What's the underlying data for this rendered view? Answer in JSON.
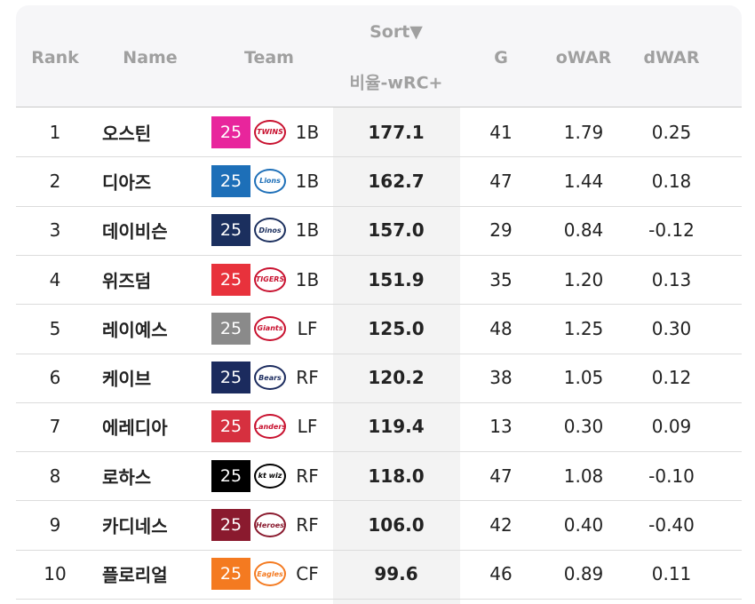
{
  "header": {
    "rank": "Rank",
    "name": "Name",
    "team": "Team",
    "sort": "Sort▼",
    "metric": "비율-wRC+",
    "g": "G",
    "owar": "oWAR",
    "dwar": "dWAR"
  },
  "table": {
    "rows": [
      {
        "rank": "1",
        "name": "오스틴",
        "badge": "25",
        "badge_color": "#e8259c",
        "logo": "TWINS",
        "logo_color": "#c8102e",
        "pos": "1B",
        "metric": "177.1",
        "g": "41",
        "owar": "1.79",
        "dwar": "0.25"
      },
      {
        "rank": "2",
        "name": "디아즈",
        "badge": "25",
        "badge_color": "#1d6fb8",
        "logo": "Lions",
        "logo_color": "#1d6fb8",
        "pos": "1B",
        "metric": "162.7",
        "g": "47",
        "owar": "1.44",
        "dwar": "0.18"
      },
      {
        "rank": "3",
        "name": "데이비슨",
        "badge": "25",
        "badge_color": "#1b2f5e",
        "logo": "Dinos",
        "logo_color": "#1b2f5e",
        "pos": "1B",
        "metric": "157.0",
        "g": "29",
        "owar": "0.84",
        "dwar": "-0.12"
      },
      {
        "rank": "4",
        "name": "위즈덤",
        "badge": "25",
        "badge_color": "#e8323c",
        "logo": "TIGERS",
        "logo_color": "#c8102e",
        "pos": "1B",
        "metric": "151.9",
        "g": "35",
        "owar": "1.20",
        "dwar": "0.13"
      },
      {
        "rank": "5",
        "name": "레이예스",
        "badge": "25",
        "badge_color": "#8a8a8a",
        "logo": "Giants",
        "logo_color": "#c8102e",
        "pos": "LF",
        "metric": "125.0",
        "g": "48",
        "owar": "1.25",
        "dwar": "0.30"
      },
      {
        "rank": "6",
        "name": "케이브",
        "badge": "25",
        "badge_color": "#1b2b5e",
        "logo": "Bears",
        "logo_color": "#1b2b5e",
        "pos": "RF",
        "metric": "120.2",
        "g": "38",
        "owar": "1.05",
        "dwar": "0.12"
      },
      {
        "rank": "7",
        "name": "에레디아",
        "badge": "25",
        "badge_color": "#d6303f",
        "logo": "Landers",
        "logo_color": "#c8102e",
        "pos": "LF",
        "metric": "119.4",
        "g": "13",
        "owar": "0.30",
        "dwar": "0.09"
      },
      {
        "rank": "8",
        "name": "로하스",
        "badge": "25",
        "badge_color": "#000000",
        "logo": "kt wiz",
        "logo_color": "#000000",
        "pos": "RF",
        "metric": "118.0",
        "g": "47",
        "owar": "1.08",
        "dwar": "-0.10"
      },
      {
        "rank": "9",
        "name": "카디네스",
        "badge": "25",
        "badge_color": "#8a1a2e",
        "logo": "Heroes",
        "logo_color": "#8a1a2e",
        "pos": "RF",
        "metric": "106.0",
        "g": "42",
        "owar": "0.40",
        "dwar": "-0.40"
      },
      {
        "rank": "10",
        "name": "플로리얼",
        "badge": "25",
        "badge_color": "#f47a20",
        "logo": "Eagles",
        "logo_color": "#f47a20",
        "pos": "CF",
        "metric": "99.6",
        "g": "46",
        "owar": "0.89",
        "dwar": "0.11"
      }
    ]
  }
}
